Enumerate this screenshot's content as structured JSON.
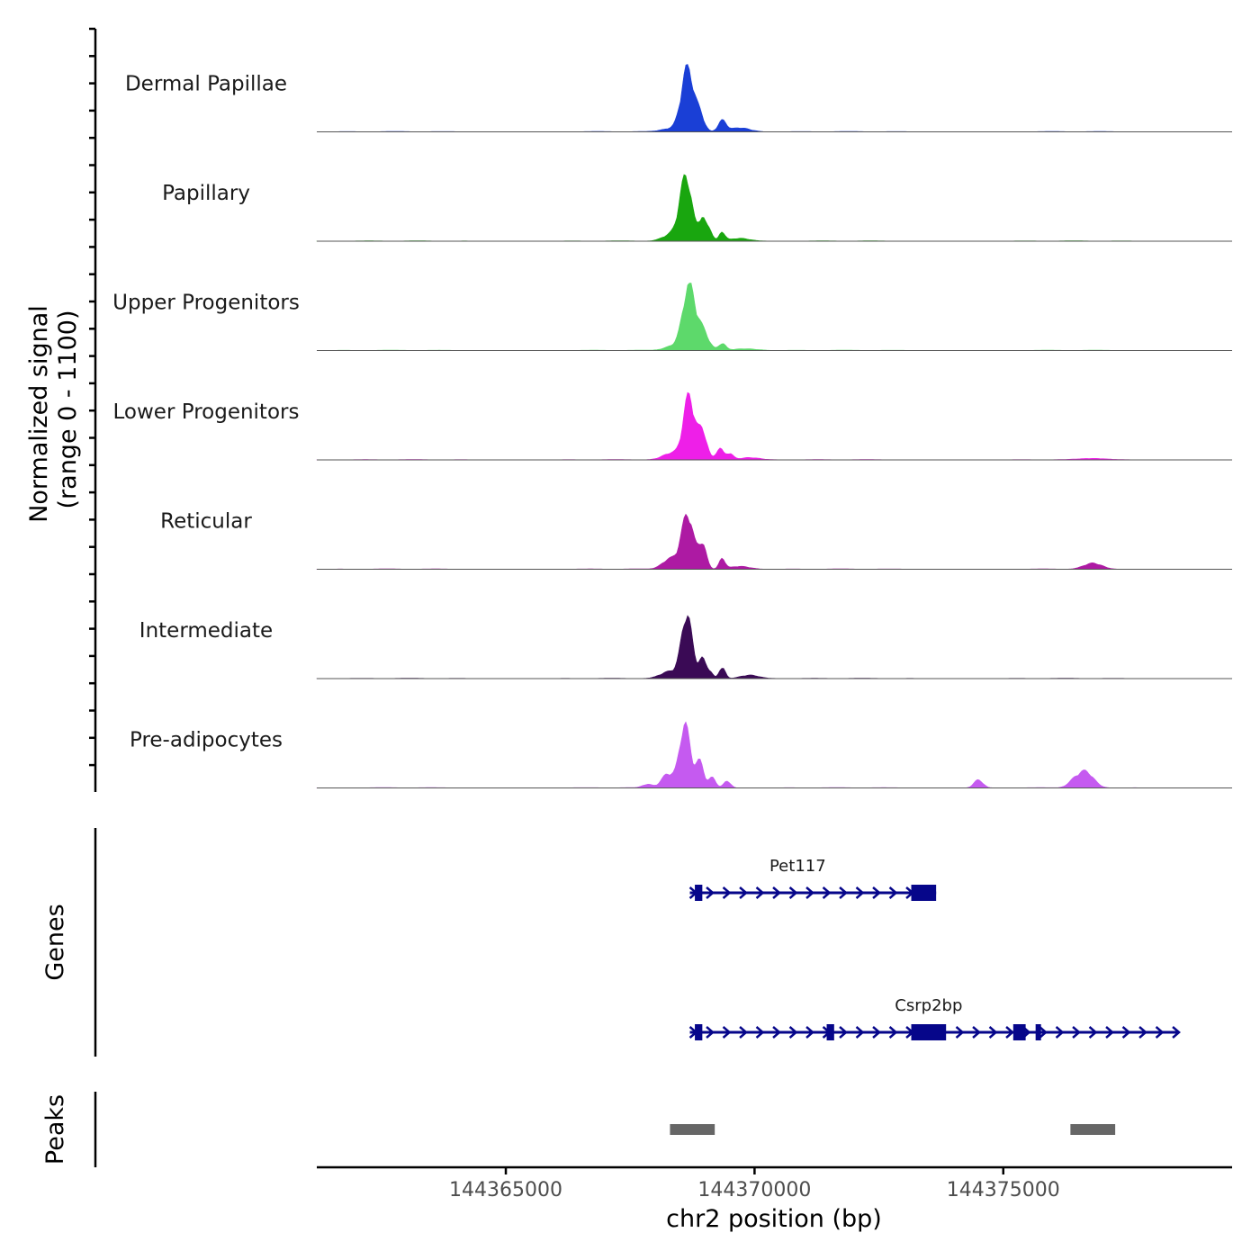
{
  "chart_data": {
    "type": "area",
    "title": "",
    "ylabel_line1": "Normalized signal",
    "ylabel_line2": "(range 0 - 1100)",
    "ylim": [
      0,
      1100
    ],
    "xlabel": "chr2 position (bp)",
    "xlim": [
      144361200,
      144379600
    ],
    "xticks": [
      {
        "value": 144365000,
        "label": "144365000"
      },
      {
        "value": 144370000,
        "label": "144370000"
      },
      {
        "value": 144375000,
        "label": "144375000"
      }
    ],
    "tracks": [
      {
        "name": "Dermal Papillae",
        "color": "#1a3fd6",
        "peaks": [
          {
            "x": 144368650,
            "h": 1100,
            "w": 120
          },
          {
            "x": 144368900,
            "h": 280,
            "w": 90
          },
          {
            "x": 144369350,
            "h": 190,
            "w": 80
          },
          {
            "x": 144368350,
            "h": 60,
            "w": 200
          },
          {
            "x": 144369700,
            "h": 70,
            "w": 200
          }
        ]
      },
      {
        "name": "Papillary",
        "color": "#19a60f",
        "peaks": [
          {
            "x": 144368620,
            "h": 1100,
            "w": 120
          },
          {
            "x": 144368950,
            "h": 400,
            "w": 70
          },
          {
            "x": 144369100,
            "h": 180,
            "w": 60
          },
          {
            "x": 144369350,
            "h": 150,
            "w": 60
          },
          {
            "x": 144368350,
            "h": 120,
            "w": 180
          },
          {
            "x": 144369700,
            "h": 50,
            "w": 200
          }
        ]
      },
      {
        "name": "Upper Progenitors",
        "color": "#5dd96b",
        "peaks": [
          {
            "x": 144368680,
            "h": 1100,
            "w": 120
          },
          {
            "x": 144368950,
            "h": 350,
            "w": 120
          },
          {
            "x": 144369350,
            "h": 120,
            "w": 70
          },
          {
            "x": 144368400,
            "h": 90,
            "w": 180
          },
          {
            "x": 144369800,
            "h": 30,
            "w": 250
          }
        ]
      },
      {
        "name": "Lower Progenitors",
        "color": "#ee1fe8",
        "peaks": [
          {
            "x": 144368680,
            "h": 1100,
            "w": 110
          },
          {
            "x": 144368950,
            "h": 500,
            "w": 90
          },
          {
            "x": 144369300,
            "h": 200,
            "w": 70
          },
          {
            "x": 144369500,
            "h": 110,
            "w": 70
          },
          {
            "x": 144368350,
            "h": 120,
            "w": 180
          },
          {
            "x": 144369900,
            "h": 40,
            "w": 200
          },
          {
            "x": 144376800,
            "h": 25,
            "w": 250
          }
        ]
      },
      {
        "name": "Reticular",
        "color": "#ad1aa3",
        "peaks": [
          {
            "x": 144368650,
            "h": 950,
            "w": 120
          },
          {
            "x": 144368950,
            "h": 430,
            "w": 80
          },
          {
            "x": 144369350,
            "h": 180,
            "w": 60
          },
          {
            "x": 144368300,
            "h": 180,
            "w": 150
          },
          {
            "x": 144369700,
            "h": 50,
            "w": 200
          },
          {
            "x": 144376800,
            "h": 100,
            "w": 180
          }
        ]
      },
      {
        "name": "Intermediate",
        "color": "#3a0a55",
        "peaks": [
          {
            "x": 144368640,
            "h": 1100,
            "w": 110
          },
          {
            "x": 144368950,
            "h": 330,
            "w": 70
          },
          {
            "x": 144369350,
            "h": 200,
            "w": 60
          },
          {
            "x": 144369100,
            "h": 120,
            "w": 60
          },
          {
            "x": 144368300,
            "h": 120,
            "w": 180
          },
          {
            "x": 144369900,
            "h": 60,
            "w": 180
          }
        ]
      },
      {
        "name": "Pre-adipocytes",
        "color": "#c55af0",
        "peaks": [
          {
            "x": 144368600,
            "h": 1100,
            "w": 110
          },
          {
            "x": 144368900,
            "h": 450,
            "w": 80
          },
          {
            "x": 144368250,
            "h": 240,
            "w": 120
          },
          {
            "x": 144369150,
            "h": 180,
            "w": 70
          },
          {
            "x": 144369450,
            "h": 120,
            "w": 70
          },
          {
            "x": 144374500,
            "h": 140,
            "w": 90
          },
          {
            "x": 144376650,
            "h": 280,
            "w": 160
          },
          {
            "x": 144376400,
            "h": 80,
            "w": 120
          },
          {
            "x": 144367850,
            "h": 60,
            "w": 100
          }
        ]
      }
    ],
    "genes_label": "Genes",
    "genes": [
      {
        "name": "Pet117",
        "color": "#06068a",
        "start": 144368700,
        "end": 144373650,
        "exons": [
          {
            "start": 144368800,
            "end": 144368950
          },
          {
            "start": 144373150,
            "end": 144373650
          }
        ]
      },
      {
        "name": "Csrp2bp",
        "color": "#06068a",
        "start": 144368700,
        "end": 144378500,
        "exons": [
          {
            "start": 144368800,
            "end": 144368950
          },
          {
            "start": 144371450,
            "end": 144371600
          },
          {
            "start": 144373150,
            "end": 144373850
          },
          {
            "start": 144375200,
            "end": 144375450
          },
          {
            "start": 144375650,
            "end": 144375750
          }
        ]
      }
    ],
    "peaks_label": "Peaks",
    "peak_regions": [
      {
        "start": 144368300,
        "end": 144369200
      },
      {
        "start": 144376350,
        "end": 144377250
      }
    ]
  }
}
